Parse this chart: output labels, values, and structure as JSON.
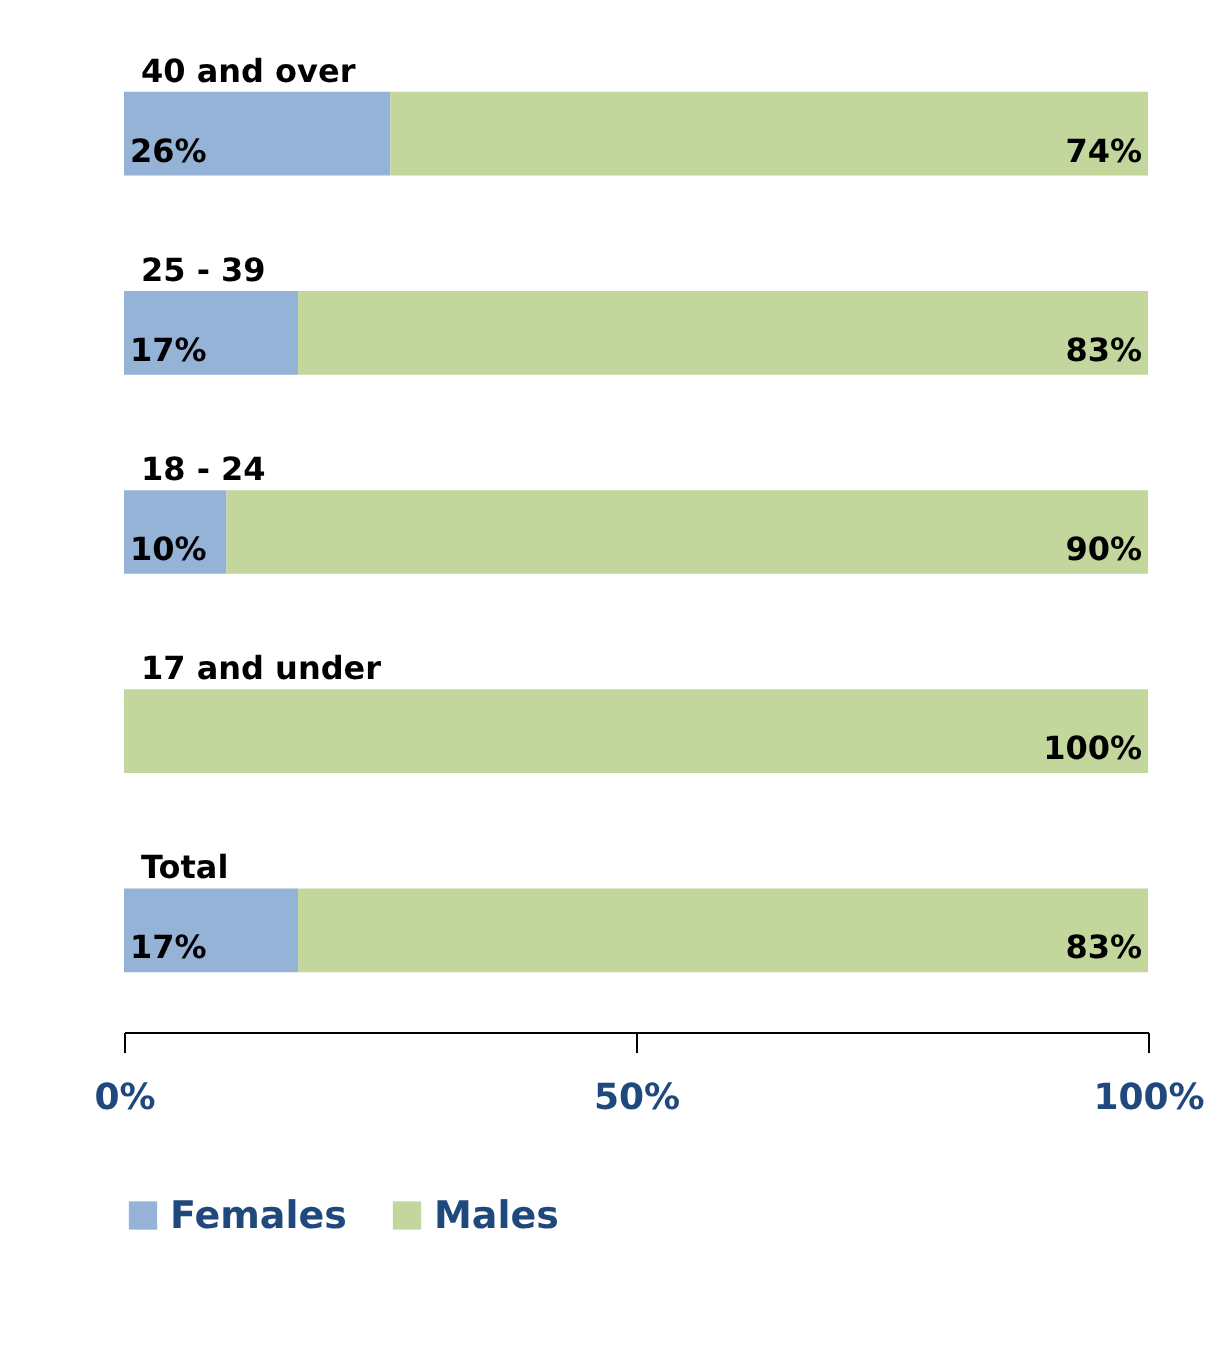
{
  "chart_data": {
    "type": "bar",
    "orientation": "horizontal",
    "stacked": true,
    "categories": [
      "40 and over",
      "25 - 39",
      "18 - 24",
      "17 and under",
      "Total"
    ],
    "series": [
      {
        "name": "Females",
        "color": "#95b3d7",
        "values": [
          26,
          17,
          10,
          0,
          17
        ],
        "value_labels": [
          "26%",
          "17%",
          "10%",
          null,
          "17%"
        ]
      },
      {
        "name": "Males",
        "color": "#c3d69b",
        "values": [
          74,
          83,
          90,
          100,
          83
        ],
        "value_labels": [
          "74%",
          "83%",
          "90%",
          "100%",
          "83%"
        ]
      }
    ],
    "xlim": [
      0,
      100
    ],
    "xticks": [
      {
        "value": 0,
        "label": "0%"
      },
      {
        "value": 50,
        "label": "50%"
      },
      {
        "value": 100,
        "label": "100%"
      }
    ],
    "grid": false,
    "legend": "bottom"
  }
}
